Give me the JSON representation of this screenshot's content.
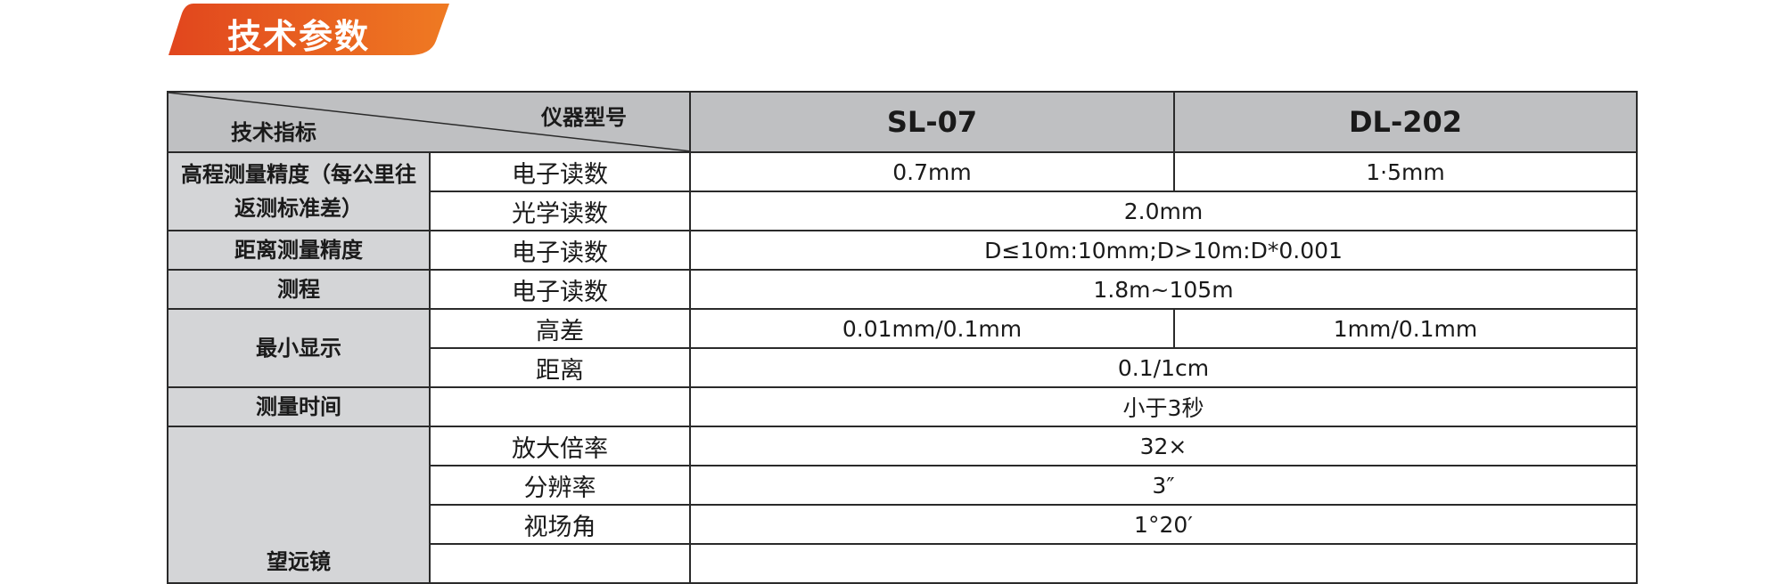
{
  "section_title": "技术参数",
  "colors": {
    "banner_start": "#e1461e",
    "banner_end": "#ef7a22",
    "header_bg": "#bfc0c2",
    "label_bg": "#d4d5d7"
  },
  "header": {
    "corner_bottom_left": "技术指标",
    "corner_top_right": "仪器型号",
    "models": [
      "SL-07",
      "DL-202"
    ]
  },
  "rows": {
    "elev_label": "高程测量精度（每公里往返测标准差）",
    "elev_e_sub": "电子读数",
    "elev_e_sl": "0.7mm",
    "elev_e_dl": "1·5mm",
    "elev_o_sub": "光学读数",
    "elev_o_val": "2.0mm",
    "dist_label": "距离测量精度",
    "dist_sub": "电子读数",
    "dist_val": "D≤10m:10mm;D>10m:D*0.001",
    "range_label": "测程",
    "range_sub": "电子读数",
    "range_val": "1.8m~105m",
    "min_label": "最小显示",
    "min_h_sub": "高差",
    "min_h_sl": "0.01mm/0.1mm",
    "min_h_dl": "1mm/0.1mm",
    "min_d_sub": "距离",
    "min_d_val": "0.1/1cm",
    "time_label": "测量时间",
    "time_val": "小于3秒",
    "tel_label": "望远镜",
    "tel_mag_sub": "放大倍率",
    "tel_mag_val": "32×",
    "tel_res_sub": "分辨率",
    "tel_res_val": "3″",
    "tel_fov_sub": "视场角",
    "tel_fov_val": "1°20′"
  }
}
